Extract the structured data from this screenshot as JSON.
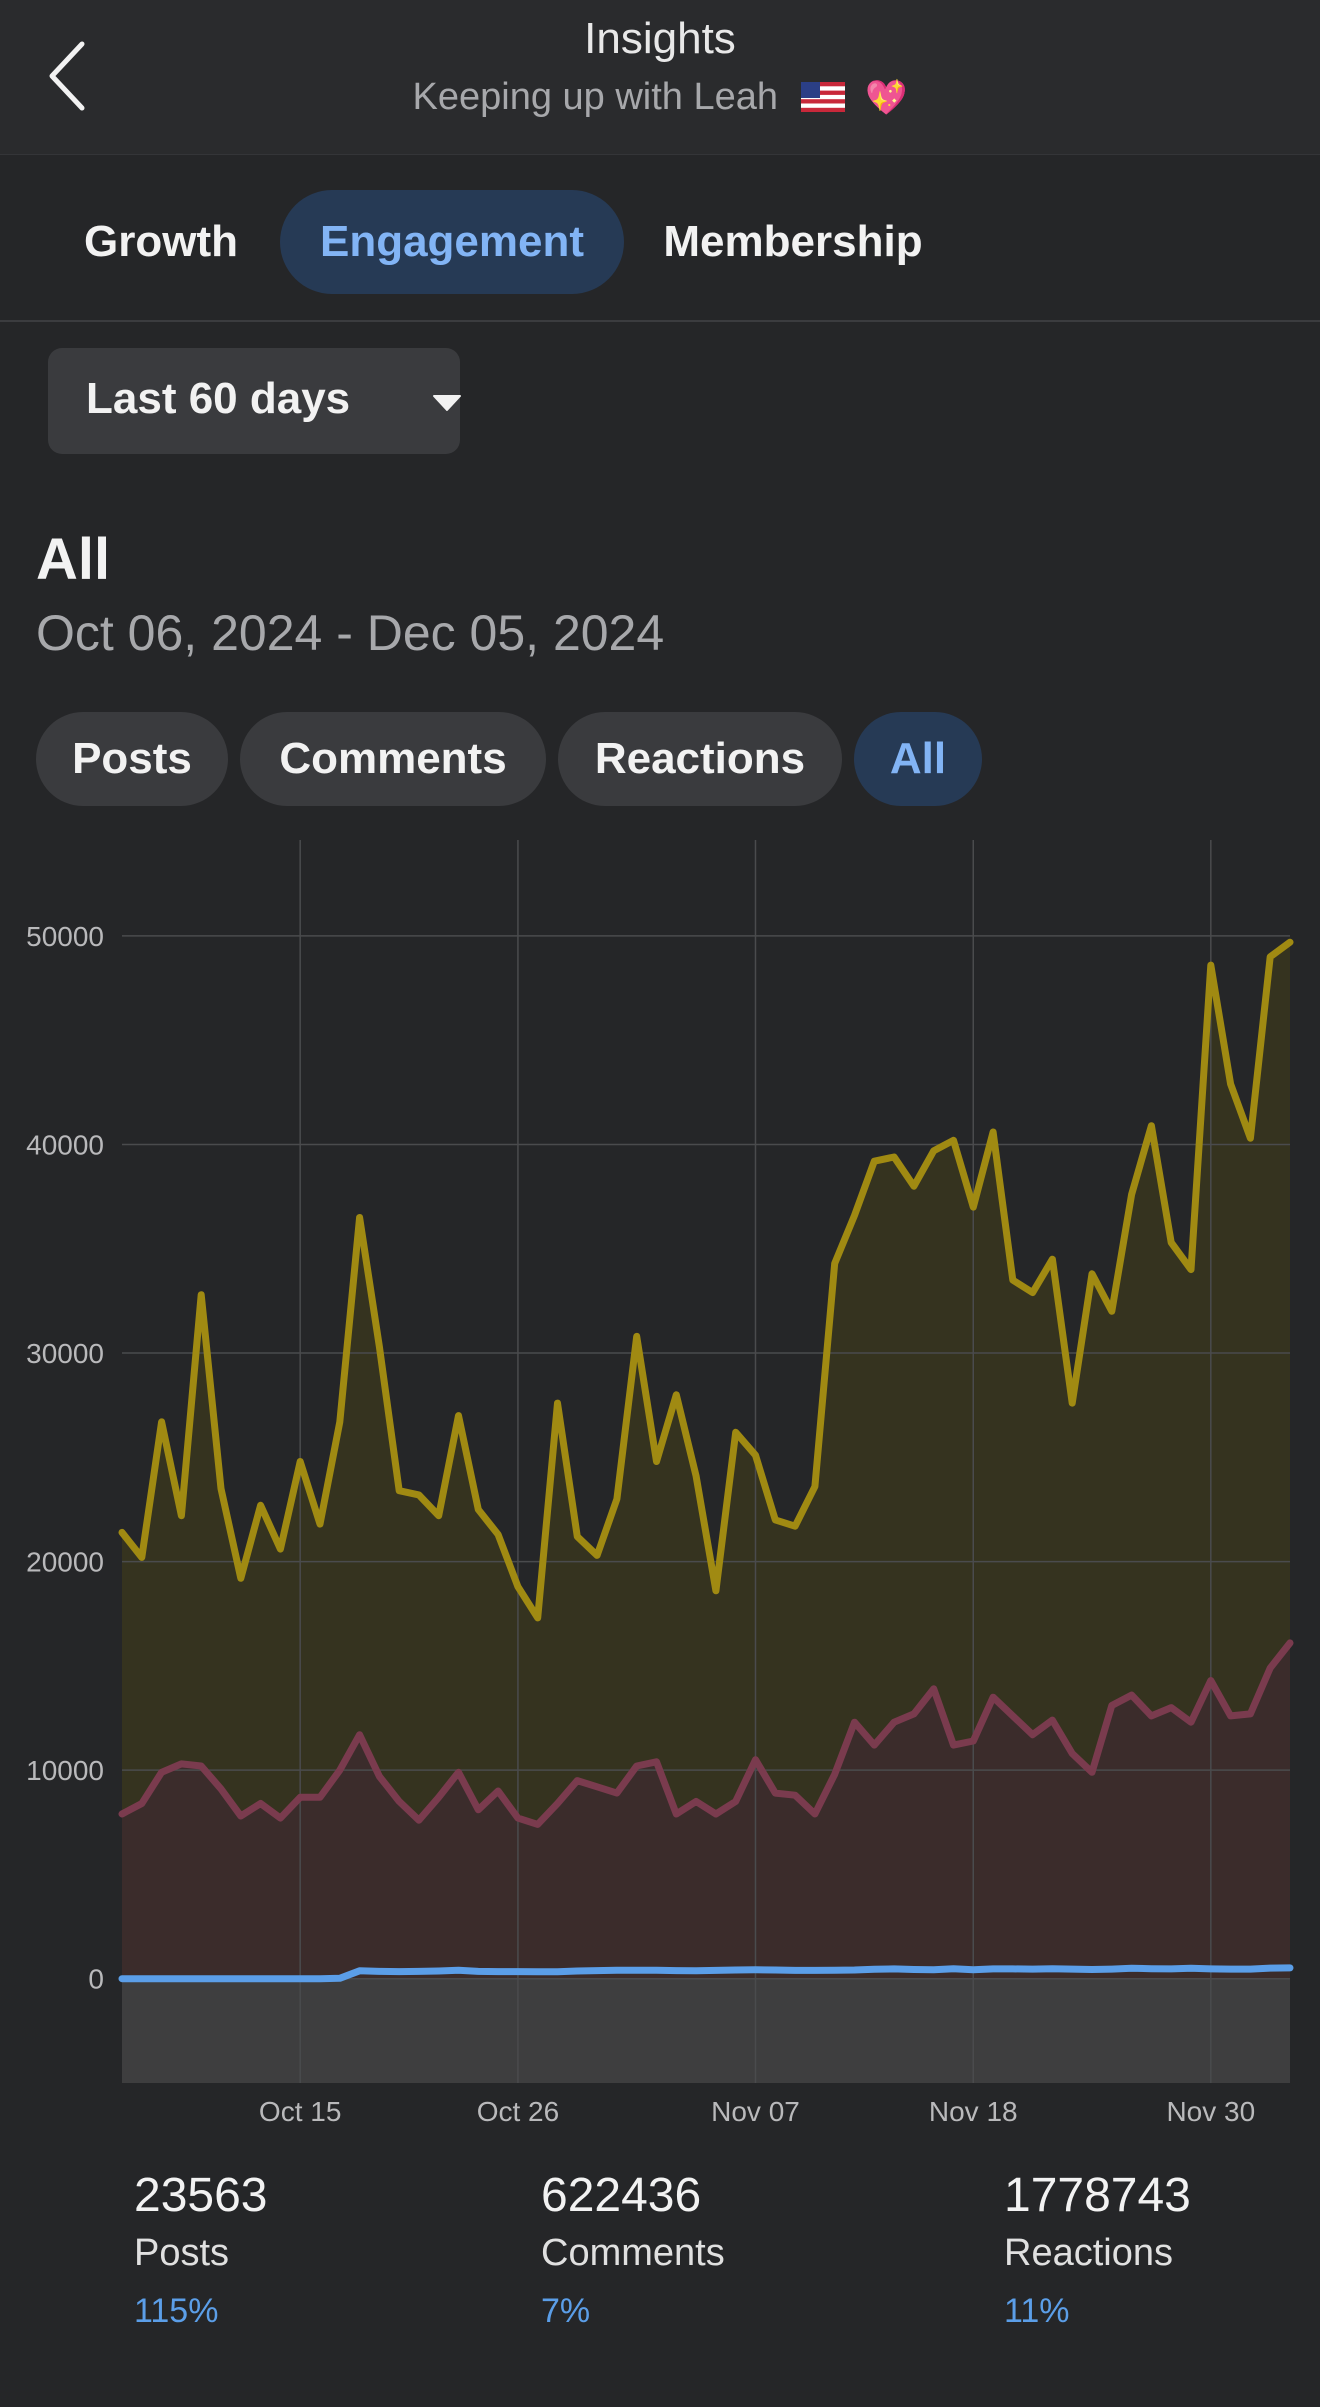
{
  "header": {
    "title": "Insights",
    "subtitle": "Keeping up with Leah",
    "emoji": "💖"
  },
  "tabs": [
    {
      "label": "Growth",
      "active": false
    },
    {
      "label": "Engagement",
      "active": true
    },
    {
      "label": "Membership",
      "active": false
    }
  ],
  "filter": {
    "range_label": "Last 60 days"
  },
  "section": {
    "title": "All",
    "dates": "Oct 06, 2024 - Dec 05, 2024"
  },
  "chips": [
    {
      "label": "Posts",
      "active": false
    },
    {
      "label": "Comments",
      "active": false
    },
    {
      "label": "Reactions",
      "active": false
    },
    {
      "label": "All",
      "active": true
    }
  ],
  "chart_data": {
    "type": "area",
    "x_start": "2024-10-06",
    "x_ticks": [
      "Oct 15",
      "Oct 26",
      "Nov 07",
      "Nov 18",
      "Nov 30"
    ],
    "y_ticks": [
      0,
      10000,
      20000,
      30000,
      40000,
      50000
    ],
    "ylim": [
      -5000,
      54600
    ],
    "grid": true,
    "colors": {
      "reactions": "#a08a12",
      "comments": "#7a3b4e",
      "posts": "#5b9ee8"
    },
    "series": [
      {
        "values": [
          21400,
          20200,
          26700,
          22200,
          32800,
          23500,
          19200,
          22700,
          20600,
          24800,
          21800,
          26700,
          36500,
          30300,
          23400,
          23200,
          22200,
          27000,
          22500,
          21300,
          18800,
          17300,
          27600,
          21200,
          20300,
          23000,
          30800,
          24800,
          28000,
          24100,
          18600,
          26200,
          25100,
          22000,
          21700,
          23600,
          34300,
          36600,
          39200,
          39400,
          38000,
          39700,
          40200,
          37000,
          40600,
          33500,
          32900,
          34500,
          27600,
          33800,
          32000,
          37600,
          40900,
          35300,
          34000,
          48600,
          42900,
          40300,
          49000,
          49700
        ]
      },
      {
        "values": [
          7900,
          8400,
          9900,
          10300,
          10200,
          9100,
          7800,
          8400,
          7700,
          8700,
          8700,
          10000,
          11700,
          9700,
          8500,
          7600,
          8700,
          9900,
          8100,
          9000,
          7700,
          7400,
          8400,
          9500,
          9200,
          8900,
          10200,
          10400,
          7900,
          8500,
          7900,
          8500,
          10500,
          8900,
          8800,
          7900,
          9800,
          12300,
          11200,
          12300,
          12700,
          13900,
          11200,
          11400,
          13500,
          12600,
          11700,
          12400,
          10800,
          9900,
          13100,
          13600,
          12600,
          13000,
          12300,
          14300,
          12600,
          12700,
          14900,
          16100
        ]
      },
      {
        "values": [
          0,
          0,
          0,
          0,
          0,
          0,
          0,
          0,
          0,
          0,
          0,
          20,
          380,
          350,
          340,
          350,
          370,
          410,
          350,
          340,
          340,
          330,
          330,
          370,
          390,
          410,
          410,
          410,
          390,
          380,
          400,
          420,
          430,
          420,
          400,
          400,
          410,
          420,
          450,
          470,
          440,
          430,
          480,
          430,
          470,
          470,
          460,
          480,
          460,
          440,
          460,
          500,
          480,
          470,
          500,
          470,
          460,
          460,
          510,
          520
        ]
      }
    ]
  },
  "stats": [
    {
      "value": "23563",
      "label": "Posts",
      "change": "115%"
    },
    {
      "value": "622436",
      "label": "Comments",
      "change": "7%"
    },
    {
      "value": "1778743",
      "label": "Reactions",
      "change": "11%"
    }
  ]
}
